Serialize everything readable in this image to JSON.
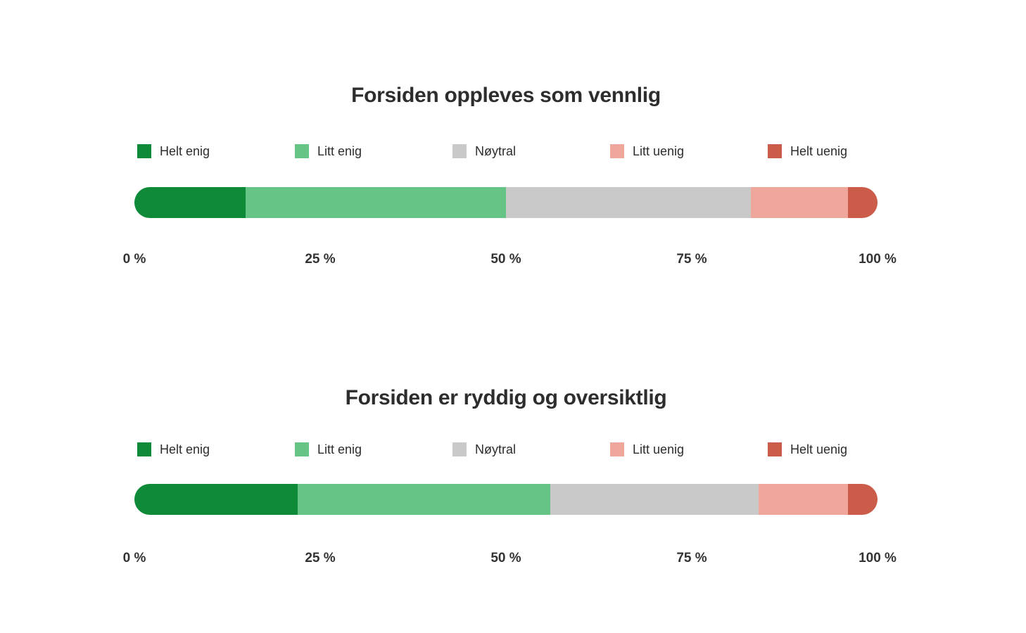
{
  "page": {
    "background_color": "#ffffff"
  },
  "chart_data": [
    {
      "type": "bar",
      "stacked": true,
      "orientation": "horizontal",
      "title": "Forsiden oppleves som vennlig",
      "categories": [
        "Helt enig",
        "Litt enig",
        "Nøytral",
        "Litt uenig",
        "Helt uenig"
      ],
      "values": [
        15,
        35,
        33,
        13,
        4
      ],
      "unit": "%",
      "colors": [
        "#0e8a38",
        "#66c586",
        "#c9c9c9",
        "#efa79b",
        "#cb5c4a"
      ],
      "x_ticks": [
        "0 %",
        "25 %",
        "50 %",
        "75 %",
        "100 %"
      ],
      "x_tick_values": [
        0,
        25,
        50,
        75,
        100
      ],
      "xlim": [
        0,
        100
      ],
      "legend_position": "top",
      "grid": false
    },
    {
      "type": "bar",
      "stacked": true,
      "orientation": "horizontal",
      "title": "Forsiden er ryddig og oversiktlig",
      "categories": [
        "Helt enig",
        "Litt enig",
        "Nøytral",
        "Litt uenig",
        "Helt uenig"
      ],
      "values": [
        22,
        34,
        28,
        12,
        4
      ],
      "unit": "%",
      "colors": [
        "#0e8a38",
        "#66c586",
        "#c9c9c9",
        "#efa79b",
        "#cb5c4a"
      ],
      "x_ticks": [
        "0 %",
        "25 %",
        "50 %",
        "75 %",
        "100 %"
      ],
      "x_tick_values": [
        0,
        25,
        50,
        75,
        100
      ],
      "xlim": [
        0,
        100
      ],
      "legend_position": "top",
      "grid": false
    }
  ]
}
